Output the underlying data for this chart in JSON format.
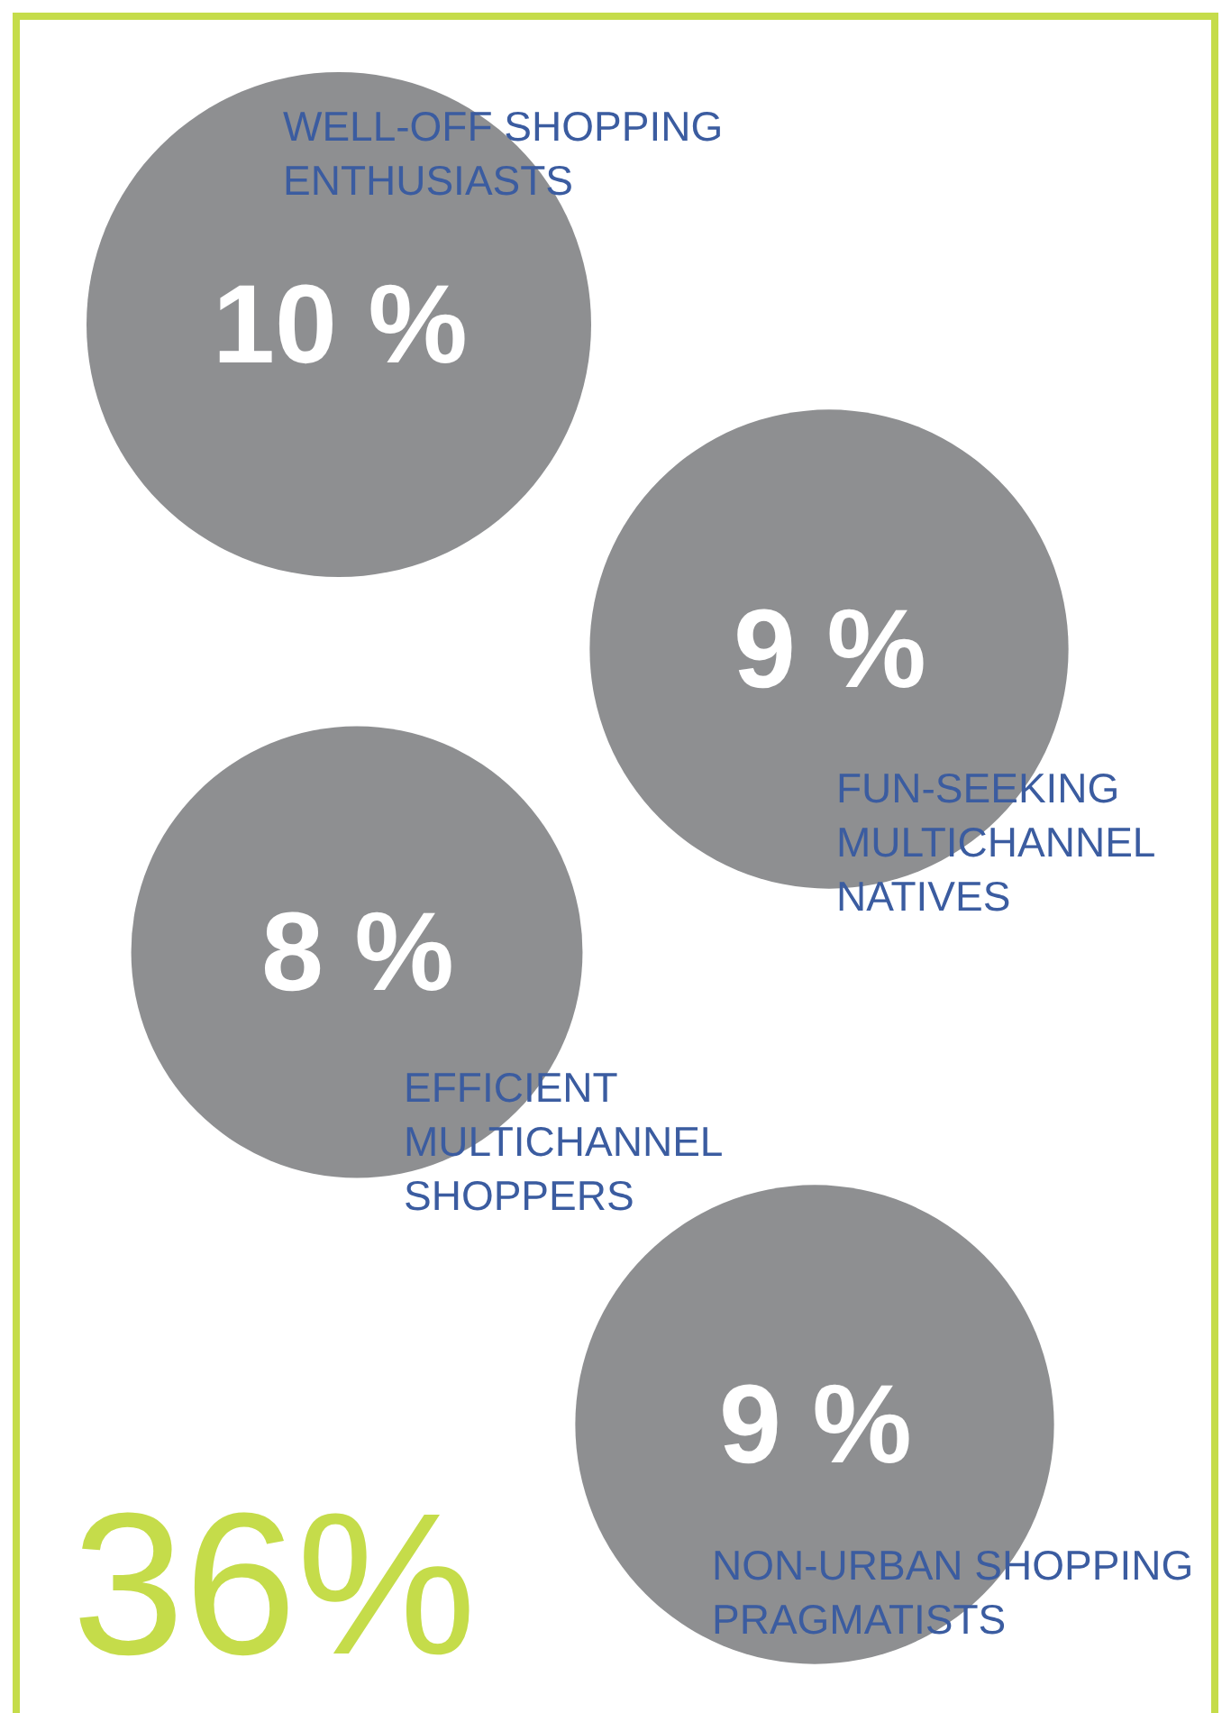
{
  "chart_data": {
    "type": "other",
    "categories": [
      "WELL-OFF SHOPPING ENTHUSIASTS",
      "FUN-SEEKING MULTICHANNEL NATIVES",
      "EFFICIENT MULTICHANNEL SHOPPERS",
      "NON-URBAN SHOPPING PRAGMATISTS"
    ],
    "values": [
      10,
      9,
      8,
      9
    ],
    "value_labels": [
      "10 %",
      "9 %",
      "8 %",
      "9 %"
    ],
    "colors": [
      "#8e8f91",
      "#8e8f91",
      "#8e8f91",
      "#8e8f91"
    ],
    "annotations": [
      "36%"
    ]
  }
}
